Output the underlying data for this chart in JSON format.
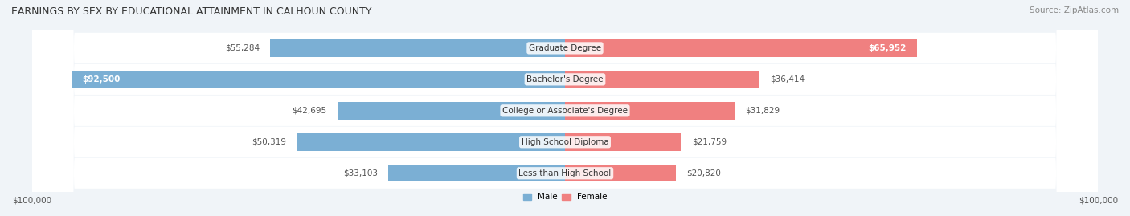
{
  "title": "EARNINGS BY SEX BY EDUCATIONAL ATTAINMENT IN CALHOUN COUNTY",
  "source": "Source: ZipAtlas.com",
  "categories": [
    "Less than High School",
    "High School Diploma",
    "College or Associate's Degree",
    "Bachelor's Degree",
    "Graduate Degree"
  ],
  "male_values": [
    33103,
    50319,
    42695,
    92500,
    55284
  ],
  "female_values": [
    20820,
    21759,
    31829,
    36414,
    65952
  ],
  "male_color": "#7bafd4",
  "female_color": "#f08080",
  "male_label": "Male",
  "female_label": "Female",
  "axis_max": 100000,
  "bg_color": "#f0f4f8",
  "bar_bg_color": "#e8edf2",
  "title_fontsize": 9,
  "source_fontsize": 7.5,
  "label_fontsize": 7.5,
  "value_fontsize": 7.5,
  "cat_fontsize": 7.5,
  "axis_label_fontsize": 7.5
}
